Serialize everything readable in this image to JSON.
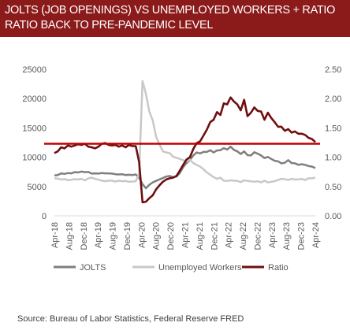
{
  "banner": {
    "line1": "JOLTS (JOB OPENINGS) VS UNEMPLOYED WORKERS + RATIO",
    "line2": "RATIO BACK TO PRE-PANDEMIC LEVEL",
    "background_color": "#8b1a1a"
  },
  "source": "Source: Bureau of Labor Statistics, Federal Reserve FRED",
  "chart_data": {
    "type": "line",
    "title": "JOLTS (JOB OPENINGS) VS UNEMPLOYED WORKERS + RATIO RATIO BACK TO PRE-PANDEMIC LEVEL",
    "x_tick_labels": [
      "Apr-18",
      "Aug-18",
      "Dec-18",
      "Apr-19",
      "Aug-19",
      "Dec-19",
      "Apr-20",
      "Aug-20",
      "Dec-20",
      "Apr-21",
      "Aug-21",
      "Dec-21",
      "Apr-22",
      "Aug-22",
      "Dec-22",
      "Apr-23",
      "Aug-23",
      "Dec-23",
      "Apr-24"
    ],
    "x_start": "Apr-18",
    "x_end": "Apr-24",
    "y_left": {
      "min": 0,
      "max": 25000,
      "ticks": [
        "0",
        "5000",
        "10000",
        "15000",
        "20000",
        "25000"
      ]
    },
    "y_right": {
      "min": 0,
      "max": 2.5,
      "ticks": [
        "0.00",
        "0.50",
        "1.00",
        "1.50",
        "2.00",
        "2.50"
      ]
    },
    "grid": false,
    "legend_position": "bottom",
    "reference_line": {
      "axis": "right",
      "value": 1.23,
      "color": "#c00000"
    },
    "series": [
      {
        "name": "JOLTS",
        "axis": "left",
        "color": "#7f7f7f",
        "values": [
          6900,
          6950,
          7250,
          7150,
          7300,
          7250,
          7450,
          7400,
          7550,
          7450,
          7500,
          7200,
          7250,
          7200,
          7300,
          7250,
          7250,
          7200,
          7100,
          7050,
          7100,
          6950,
          7000,
          6950,
          7050,
          6500,
          5400,
          4700,
          5300,
          5700,
          5950,
          6200,
          6450,
          6700,
          6800,
          6600,
          6700,
          7300,
          8300,
          9000,
          9500,
          10300,
          10800,
          10650,
          10900,
          10900,
          11200,
          10800,
          11150,
          11200,
          11550,
          11300,
          11800,
          11250,
          11000,
          10550,
          11000,
          10350,
          10300,
          10850,
          10600,
          10300,
          9850,
          10050,
          9700,
          9400,
          9300,
          8950,
          9050,
          9500,
          9000,
          8950,
          8700,
          8800,
          8700,
          8500,
          8400,
          8150
        ]
      },
      {
        "name": "Unemployed Workers",
        "axis": "left",
        "color": "#c8c8c8",
        "values": [
          6400,
          6350,
          6200,
          6250,
          6100,
          6150,
          6250,
          6200,
          6300,
          6050,
          6400,
          6500,
          6300,
          6150,
          6000,
          5900,
          6000,
          6000,
          5850,
          6000,
          5900,
          5950,
          5800,
          5850,
          5900,
          7100,
          23000,
          20800,
          17800,
          16300,
          13500,
          12200,
          11000,
          10800,
          10700,
          10100,
          9900,
          9700,
          9500,
          9300,
          9550,
          9000,
          8700,
          8400,
          7950,
          7400,
          7000,
          6600,
          6300,
          6500,
          6000,
          5950,
          6050,
          6000,
          5950,
          5750,
          6050,
          5950,
          5900,
          5800,
          5900,
          5700,
          6000,
          5700,
          5800,
          5900,
          6100,
          6300,
          6250,
          6100,
          6300,
          6200,
          6200,
          6300,
          6100,
          6400,
          6400,
          6500
        ]
      },
      {
        "name": "Ratio",
        "axis": "right",
        "color": "#6e0f0f",
        "values": [
          1.07,
          1.1,
          1.17,
          1.15,
          1.2,
          1.18,
          1.2,
          1.22,
          1.21,
          1.23,
          1.18,
          1.17,
          1.15,
          1.18,
          1.23,
          1.24,
          1.21,
          1.2,
          1.21,
          1.18,
          1.2,
          1.17,
          1.21,
          1.19,
          1.19,
          0.92,
          0.23,
          0.24,
          0.3,
          0.35,
          0.45,
          0.52,
          0.58,
          0.62,
          0.64,
          0.65,
          0.68,
          0.77,
          0.87,
          0.96,
          1.0,
          1.14,
          1.24,
          1.27,
          1.37,
          1.47,
          1.6,
          1.64,
          1.77,
          1.72,
          1.92,
          1.9,
          2.02,
          1.95,
          1.9,
          1.8,
          1.98,
          1.7,
          1.76,
          1.85,
          1.79,
          1.78,
          1.64,
          1.76,
          1.67,
          1.6,
          1.52,
          1.52,
          1.45,
          1.48,
          1.42,
          1.44,
          1.4,
          1.4,
          1.38,
          1.33,
          1.31,
          1.26
        ]
      }
    ]
  }
}
